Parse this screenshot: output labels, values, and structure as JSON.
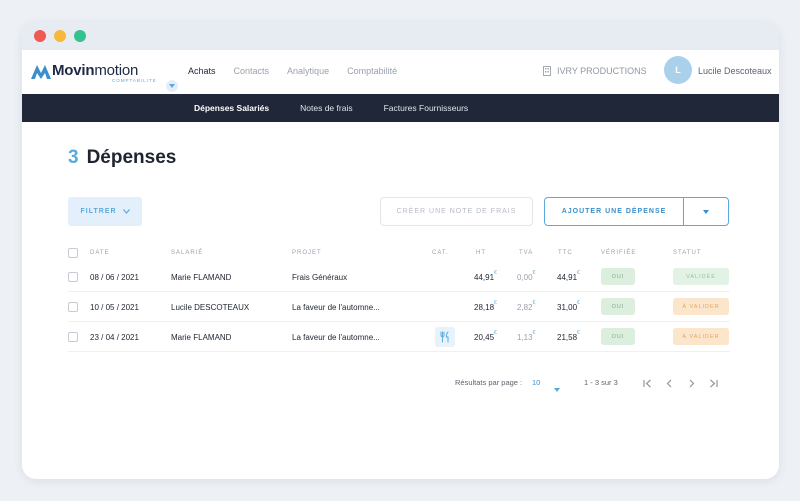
{
  "window": {
    "traffic_lights": {
      "close": "#ef5a52",
      "minimize": "#f6b93b",
      "maximize": "#34c38f"
    }
  },
  "brand": {
    "name_bold": "Movin",
    "name_light": "motion",
    "subtitle": "COMPTABILITE"
  },
  "nav": {
    "items": [
      {
        "label": "Achats",
        "active": true
      },
      {
        "label": "Contacts",
        "active": false
      },
      {
        "label": "Analytique",
        "active": false
      },
      {
        "label": "Comptabilité",
        "active": false
      }
    ],
    "company": "IVRY PRODUCTIONS",
    "user": {
      "initial": "L",
      "name": "Lucile Descoteaux"
    }
  },
  "subnav": {
    "items": [
      {
        "label": "Dépenses Salariés",
        "active": true
      },
      {
        "label": "Notes de frais",
        "active": false
      },
      {
        "label": "Factures Fournisseurs",
        "active": false
      }
    ]
  },
  "page": {
    "count": "3",
    "title": "Dépenses"
  },
  "toolbar": {
    "filter_label": "FILTRER",
    "create_label": "CRÉER UNE NOTE DE FRAIS",
    "add_label": "AJOUTER UNE DÉPENSE"
  },
  "table": {
    "headers": {
      "date": "DATE",
      "employee": "SALARIÉ",
      "project": "PROJET",
      "category": "CAT.",
      "ht": "HT",
      "tva": "TVA",
      "ttc": "TTC",
      "verified": "VÉRIFIÉE",
      "status": "STATUT"
    },
    "currency": "€",
    "rows": [
      {
        "date": "08 / 06 / 2021",
        "employee": "Marie FLAMAND",
        "project": "Frais Généraux",
        "category_icon": "",
        "ht": "44,91",
        "tva": "0,00",
        "ttc": "44,91",
        "verified": "OUI",
        "status": "VALIDÉE",
        "status_type": "valid"
      },
      {
        "date": "10 / 05 / 2021",
        "employee": "Lucile DESCOTEAUX",
        "project": "La faveur de l'automne...",
        "category_icon": "",
        "ht": "28,18",
        "tva": "2,82",
        "ttc": "31,00",
        "verified": "OUI",
        "status": "À VALIDER",
        "status_type": "pending"
      },
      {
        "date": "23 / 04 / 2021",
        "employee": "Marie FLAMAND",
        "project": "La faveur de l'automne...",
        "category_icon": "restaurant-icon",
        "ht": "20,45",
        "tva": "1,13",
        "ttc": "21,58",
        "verified": "OUI",
        "status": "À VALIDER",
        "status_type": "pending"
      }
    ]
  },
  "pagination": {
    "per_page_label": "Résultats par page :",
    "per_page_value": "10",
    "range": "1 - 3 sur 3"
  },
  "colors": {
    "accent": "#5aa9dd",
    "navbar_dark": "#1f2738",
    "valid_badge": "#e2f2e4",
    "pending_badge": "#fbe6cc"
  }
}
